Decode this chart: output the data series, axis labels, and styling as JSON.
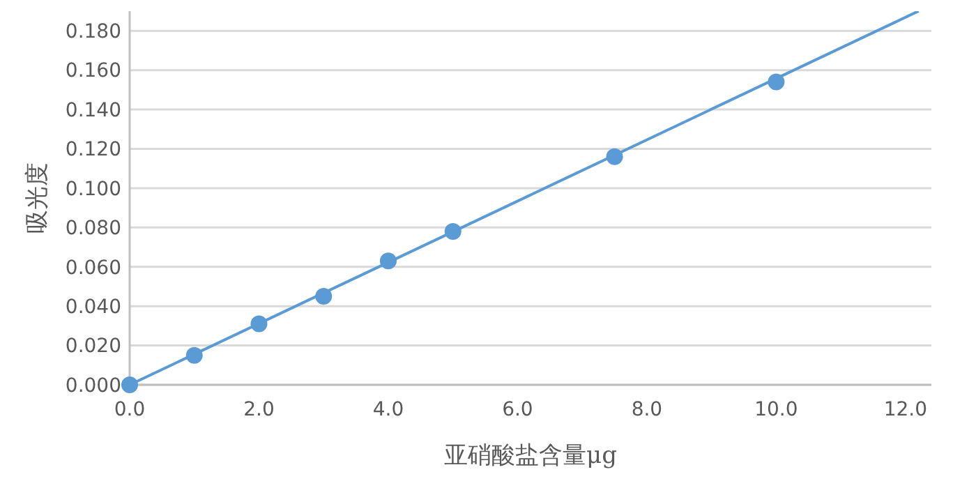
{
  "chart_data": {
    "type": "scatter",
    "xlabel": "亚硝酸盐含量μg",
    "ylabel": "吸光度",
    "x": [
      0,
      1,
      2,
      3,
      4,
      5,
      7.5,
      10
    ],
    "series": [
      {
        "color": "#5b9bd5",
        "marker": "circle",
        "values": [
          0,
          0.015,
          0.031,
          0.045,
          0.063,
          0.078,
          0.116,
          0.154
        ]
      },
      {
        "type": "line",
        "marker": "none",
        "color": "#5b9bd5",
        "x": [
          0,
          12.2
        ],
        "values": [
          0,
          0.19
        ]
      }
    ],
    "xlim": [
      0,
      12.4
    ],
    "xticks": [
      {
        "value": 0,
        "label": "0.0"
      },
      {
        "value": 2,
        "label": "2.0"
      },
      {
        "value": 4,
        "label": "4.0"
      },
      {
        "value": 6,
        "label": "6.0"
      },
      {
        "value": 8,
        "label": "8.0"
      },
      {
        "value": 10,
        "label": "10.0"
      },
      {
        "value": 12,
        "label": "12.0"
      }
    ],
    "ylim": [
      0,
      0.19
    ],
    "yticks": [
      {
        "value": 0,
        "label": "0.000"
      },
      {
        "value": 0.02,
        "label": "0.020"
      },
      {
        "value": 0.04,
        "label": "0.040"
      },
      {
        "value": 0.06,
        "label": "0.060"
      },
      {
        "value": 0.08,
        "label": "0.080"
      },
      {
        "value": 0.1,
        "label": "0.100"
      },
      {
        "value": 0.12,
        "label": "0.120"
      },
      {
        "value": 0.14,
        "label": "0.140"
      },
      {
        "value": 0.16,
        "label": "0.160"
      },
      {
        "value": 0.18,
        "label": "0.180"
      }
    ],
    "grid": "y"
  }
}
